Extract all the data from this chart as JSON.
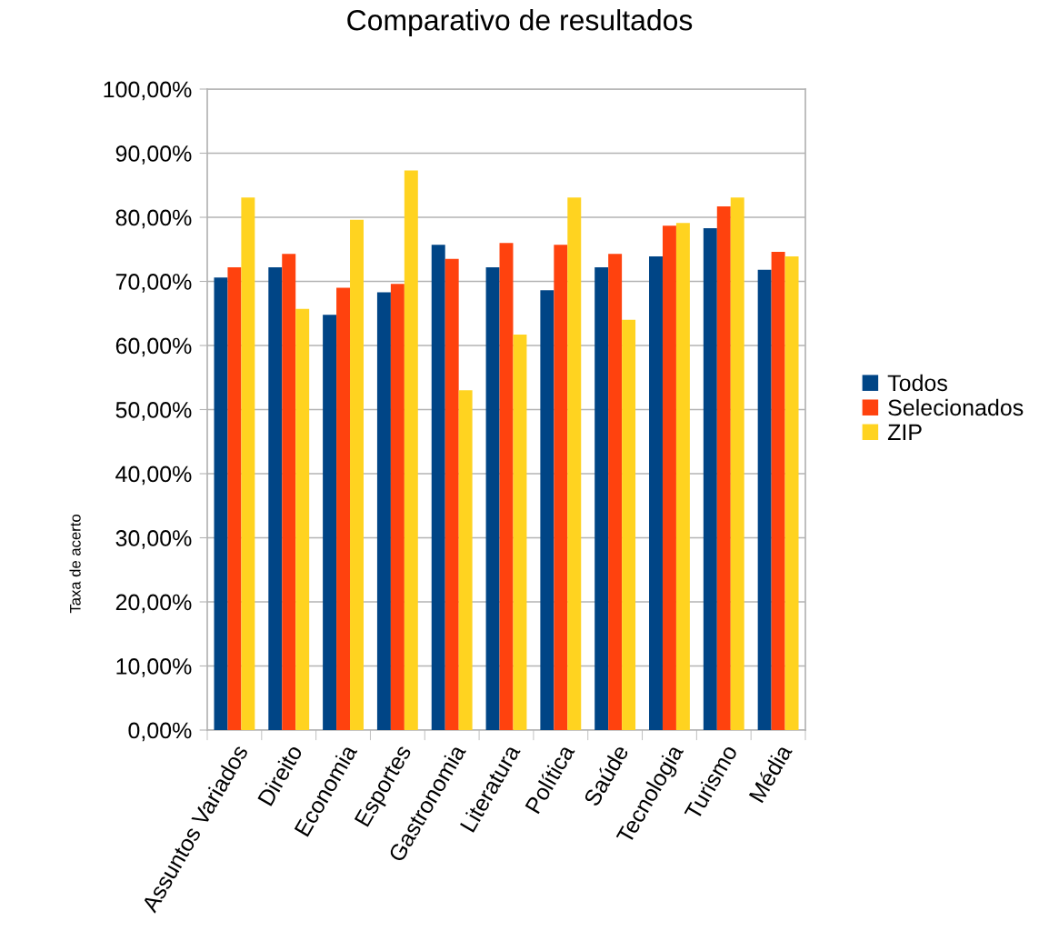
{
  "chart_data": {
    "type": "bar",
    "title": "Comparativo de resultados",
    "ylabel": "Taxa de acerto",
    "categories": [
      "Assuntos Variados",
      "Direito",
      "Economia",
      "Esportes",
      "Gastronomia",
      "Literatura",
      "Política",
      "Saúde",
      "Tecnologia",
      "Turismo",
      "Média"
    ],
    "series": [
      {
        "name": "Todos",
        "color": "#004586",
        "values": [
          70.6,
          72.2,
          64.8,
          68.3,
          75.7,
          72.2,
          68.6,
          72.2,
          73.9,
          78.3,
          71.8
        ]
      },
      {
        "name": "Selecionados",
        "color": "#ff420e",
        "values": [
          72.2,
          74.3,
          69.0,
          69.6,
          73.5,
          76.0,
          75.7,
          74.3,
          78.7,
          81.7,
          74.6
        ]
      },
      {
        "name": "ZIP",
        "color": "#ffd320",
        "values": [
          83.1,
          65.7,
          79.6,
          87.3,
          53.0,
          61.7,
          83.1,
          64.0,
          79.1,
          83.1,
          73.9
        ]
      }
    ],
    "ylim": [
      0,
      100
    ],
    "yticks": [
      {
        "value": 0,
        "label": "0,00%"
      },
      {
        "value": 10,
        "label": "10,00%"
      },
      {
        "value": 20,
        "label": "20,00%"
      },
      {
        "value": 30,
        "label": "30,00%"
      },
      {
        "value": 40,
        "label": "40,00%"
      },
      {
        "value": 50,
        "label": "50,00%"
      },
      {
        "value": 60,
        "label": "60,00%"
      },
      {
        "value": 70,
        "label": "70,00%"
      },
      {
        "value": 80,
        "label": "80,00%"
      },
      {
        "value": 90,
        "label": "90,00%"
      },
      {
        "value": 100,
        "label": "100,00%"
      }
    ],
    "grid": "y",
    "legend": "right"
  }
}
